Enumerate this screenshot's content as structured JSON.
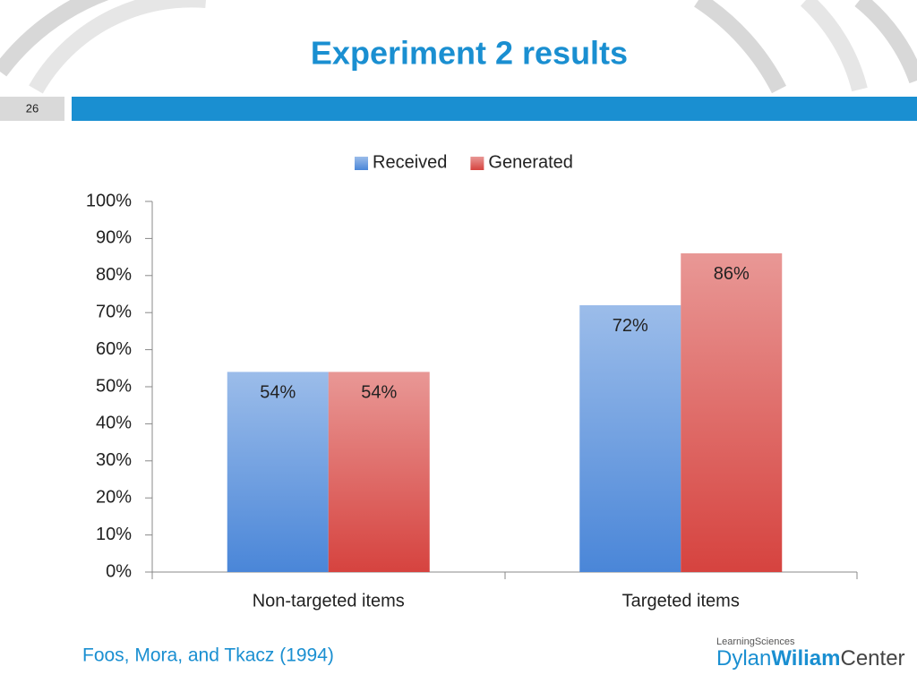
{
  "slide_number": "26",
  "title": "Experiment 2 results",
  "source": "Foos, Mora, and Tkacz (1994)",
  "logo": {
    "top": "LearningSciences",
    "name_a": "Dylan",
    "name_b": "Wiliam",
    "name_c": "Center"
  },
  "chart_data": {
    "type": "bar",
    "categories": [
      "Non-targeted items",
      "Targeted items"
    ],
    "series": [
      {
        "name": "Received",
        "color": "#4a86d8",
        "values": [
          54,
          72
        ],
        "value_labels": [
          "54%",
          "72%"
        ]
      },
      {
        "name": "Generated",
        "color": "#d6433f",
        "values": [
          54,
          86
        ],
        "value_labels": [
          "54%",
          "86%"
        ]
      }
    ],
    "ylim": [
      0,
      100
    ],
    "yticks": [
      {
        "value": 0,
        "label": "0%"
      },
      {
        "value": 10,
        "label": "10%"
      },
      {
        "value": 20,
        "label": "20%"
      },
      {
        "value": 30,
        "label": "30%"
      },
      {
        "value": 40,
        "label": "40%"
      },
      {
        "value": 50,
        "label": "50%"
      },
      {
        "value": 60,
        "label": "60%"
      },
      {
        "value": 70,
        "label": "70%"
      },
      {
        "value": 80,
        "label": "80%"
      },
      {
        "value": 90,
        "label": "90%"
      },
      {
        "value": 100,
        "label": "100%"
      }
    ],
    "legend": "top"
  }
}
